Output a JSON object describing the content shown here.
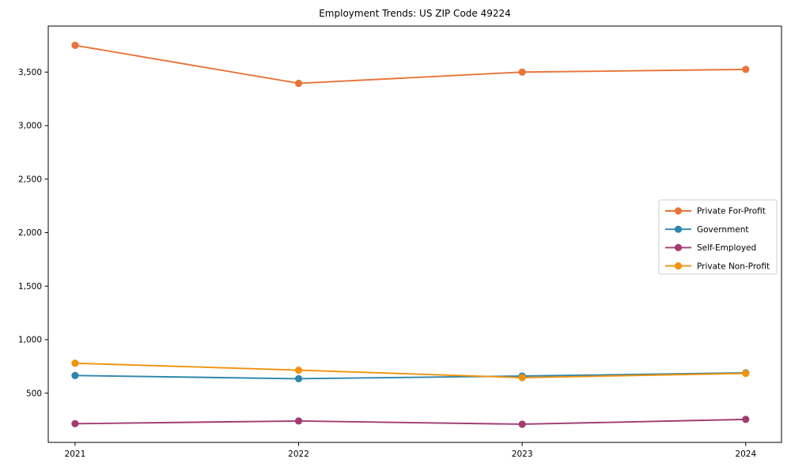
{
  "title": "Employment Trends: US ZIP Code 49224",
  "chart_data": {
    "type": "line",
    "title": "Employment Trends: US ZIP Code 49224",
    "x": [
      2021,
      2022,
      2023,
      2024
    ],
    "x_tick_labels": [
      "2021",
      "2022",
      "2023",
      "2024"
    ],
    "series": [
      {
        "name": "Private For-Profit",
        "color": "#E8743B",
        "values": [
          3750,
          3395,
          3500,
          3525
        ]
      },
      {
        "name": "Government",
        "color": "#2E86AB",
        "values": [
          665,
          635,
          660,
          690
        ]
      },
      {
        "name": "Self-Employed",
        "color": "#A23B72",
        "values": [
          215,
          240,
          210,
          255
        ]
      },
      {
        "name": "Private Non-Profit",
        "color": "#F1930D",
        "values": [
          780,
          715,
          645,
          685
        ]
      }
    ],
    "y_ticks": [
      500,
      1000,
      1500,
      2000,
      2500,
      3000,
      3500
    ],
    "y_tick_labels": [
      "500",
      "1,000",
      "1,500",
      "2,000",
      "2,500",
      "3,000",
      "3,500"
    ],
    "ylim": [
      40,
      3930
    ],
    "xlim": [
      2020.88,
      2024.16
    ],
    "xlabel": "",
    "ylabel": "",
    "grid": false,
    "marker": "circle",
    "legend_position": "center-right-inside",
    "frame_color": "#000000",
    "legend_border_color": "#cccccc",
    "background_color": "#ffffff"
  }
}
